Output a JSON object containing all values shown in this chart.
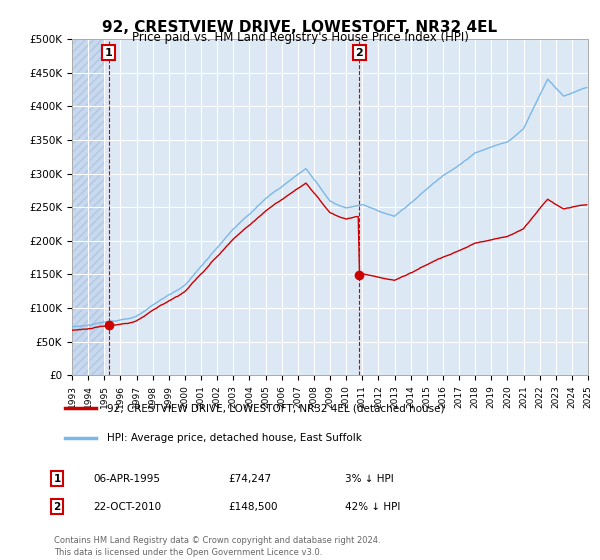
{
  "title": "92, CRESTVIEW DRIVE, LOWESTOFT, NR32 4EL",
  "subtitle": "Price paid vs. HM Land Registry's House Price Index (HPI)",
  "legend_line1": "92, CRESTVIEW DRIVE, LOWESTOFT, NR32 4EL (detached house)",
  "legend_line2": "HPI: Average price, detached house, East Suffolk",
  "annotation1_label": "1",
  "annotation1_date": "06-APR-1995",
  "annotation1_price": "£74,247",
  "annotation1_hpi": "3% ↓ HPI",
  "annotation2_label": "2",
  "annotation2_date": "22-OCT-2010",
  "annotation2_price": "£148,500",
  "annotation2_hpi": "42% ↓ HPI",
  "footer": "Contains HM Land Registry data © Crown copyright and database right 2024.\nThis data is licensed under the Open Government Licence v3.0.",
  "sale1_x": 1995.27,
  "sale1_y": 74247,
  "sale2_x": 2010.81,
  "sale2_y": 148500,
  "hpi_color": "#7ab8e8",
  "price_color": "#cc0000",
  "sale_dot_color": "#cc0000",
  "vline_color": "#cc0000",
  "ylim": [
    0,
    500000
  ],
  "xlim": [
    1993,
    2025
  ],
  "yticks": [
    0,
    50000,
    100000,
    150000,
    200000,
    250000,
    300000,
    350000,
    400000,
    450000,
    500000
  ],
  "ytick_labels": [
    "£0",
    "£50K",
    "£100K",
    "£150K",
    "£200K",
    "£250K",
    "£300K",
    "£350K",
    "£400K",
    "£450K",
    "£500K"
  ],
  "xticks": [
    1993,
    1994,
    1995,
    1996,
    1997,
    1998,
    1999,
    2000,
    2001,
    2002,
    2003,
    2004,
    2005,
    2006,
    2007,
    2008,
    2009,
    2010,
    2011,
    2012,
    2013,
    2014,
    2015,
    2016,
    2017,
    2018,
    2019,
    2020,
    2021,
    2022,
    2023,
    2024,
    2025
  ],
  "background_color": "#ffffff",
  "plot_bg_color": "#dde8f5",
  "grid_color": "#ffffff"
}
